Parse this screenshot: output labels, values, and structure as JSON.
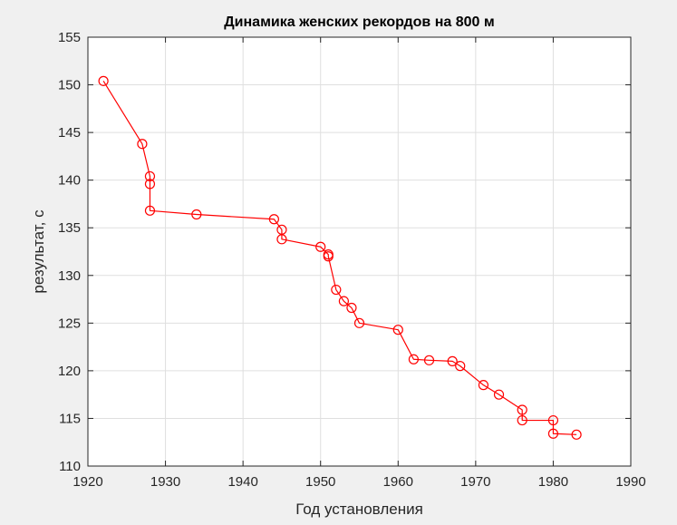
{
  "chart_data": {
    "type": "line",
    "title": "Динамика женских рекордов на 800 м",
    "xlabel": "Год установления",
    "ylabel": "результат, с",
    "xlim": [
      1920,
      1990
    ],
    "ylim": [
      110,
      155
    ],
    "xticks": [
      "1920",
      "1930",
      "1940",
      "1950",
      "1960",
      "1970",
      "1980",
      "1990"
    ],
    "yticks": [
      "110",
      "115",
      "120",
      "125",
      "130",
      "135",
      "140",
      "145",
      "150",
      "155"
    ],
    "grid": true,
    "marker": "circle",
    "series_color": "#ff0000",
    "x": [
      1922,
      1927,
      1928,
      1928,
      1928,
      1934,
      1944,
      1945,
      1945,
      1950,
      1951,
      1951,
      1952,
      1953,
      1954,
      1955,
      1960,
      1962,
      1964,
      1967,
      1968,
      1971,
      1973,
      1976,
      1976,
      1980,
      1980,
      1983
    ],
    "y": [
      150.4,
      143.8,
      140.4,
      139.6,
      136.8,
      136.4,
      135.9,
      134.8,
      133.8,
      133.0,
      132.2,
      132.0,
      128.5,
      127.3,
      126.6,
      125.0,
      124.3,
      121.2,
      121.1,
      121.0,
      120.5,
      118.5,
      117.5,
      115.9,
      114.8,
      114.8,
      113.4,
      113.3
    ]
  }
}
